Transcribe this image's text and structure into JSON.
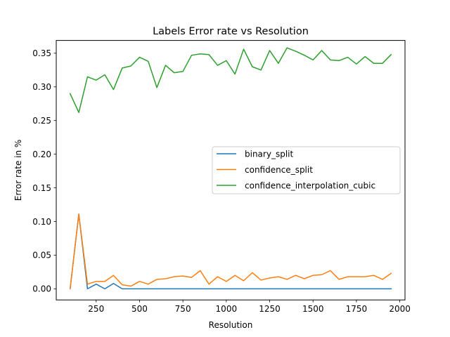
{
  "chart_data": {
    "type": "line",
    "title": "Labels Error rate vs Resolution",
    "xlabel": "Resolution",
    "ylabel": "Error rate in %",
    "xlim": [
      20,
      2030
    ],
    "ylim": [
      -0.0165,
      0.369
    ],
    "xticks": [
      250,
      500,
      750,
      1000,
      1250,
      1500,
      1750,
      2000
    ],
    "xtick_labels": [
      "250",
      "500",
      "750",
      "1000",
      "1250",
      "1500",
      "1750",
      "2000"
    ],
    "yticks": [
      0.0,
      0.05,
      0.1,
      0.15,
      0.2,
      0.25,
      0.3,
      0.35
    ],
    "ytick_labels": [
      "0.00",
      "0.05",
      "0.10",
      "0.15",
      "0.20",
      "0.25",
      "0.30",
      "0.35"
    ],
    "grid": false,
    "legend_position": "center-right",
    "x": [
      100,
      150,
      200,
      250,
      300,
      350,
      400,
      450,
      500,
      550,
      600,
      650,
      700,
      750,
      800,
      850,
      900,
      950,
      1000,
      1050,
      1100,
      1150,
      1200,
      1250,
      1300,
      1350,
      1400,
      1450,
      1500,
      1550,
      1600,
      1650,
      1700,
      1750,
      1800,
      1850,
      1900,
      1950
    ],
    "series": [
      {
        "name": "binary_split",
        "color": "#1f77b4",
        "values": [
          0.0,
          0.111,
          0.0,
          0.007,
          0.0,
          0.008,
          0.0,
          0.0,
          0.0,
          0.0,
          0.0,
          0.0,
          0.0,
          0.0,
          0.0,
          0.0,
          0.0,
          0.0,
          0.0,
          0.0,
          0.0,
          0.0,
          0.0,
          0.0,
          0.0,
          0.0,
          0.0,
          0.0,
          0.0,
          0.0,
          0.0,
          0.0,
          0.0,
          0.0,
          0.0,
          0.0,
          0.0,
          0.0
        ]
      },
      {
        "name": "confidence_split",
        "color": "#ff7f0e",
        "values": [
          0.0,
          0.111,
          0.007,
          0.011,
          0.011,
          0.02,
          0.006,
          0.004,
          0.011,
          0.007,
          0.014,
          0.015,
          0.018,
          0.019,
          0.017,
          0.027,
          0.007,
          0.018,
          0.011,
          0.02,
          0.012,
          0.024,
          0.013,
          0.016,
          0.018,
          0.014,
          0.02,
          0.015,
          0.02,
          0.021,
          0.027,
          0.014,
          0.018,
          0.018,
          0.018,
          0.02,
          0.014,
          0.023
        ]
      },
      {
        "name": "confidence_interpolation_cubic",
        "color": "#2ca02c",
        "values": [
          0.29,
          0.262,
          0.315,
          0.31,
          0.318,
          0.296,
          0.328,
          0.331,
          0.344,
          0.338,
          0.299,
          0.332,
          0.321,
          0.323,
          0.347,
          0.349,
          0.348,
          0.332,
          0.339,
          0.319,
          0.356,
          0.33,
          0.325,
          0.354,
          0.335,
          0.358,
          0.353,
          0.347,
          0.34,
          0.354,
          0.34,
          0.339,
          0.344,
          0.334,
          0.345,
          0.335,
          0.335,
          0.348
        ]
      }
    ]
  }
}
